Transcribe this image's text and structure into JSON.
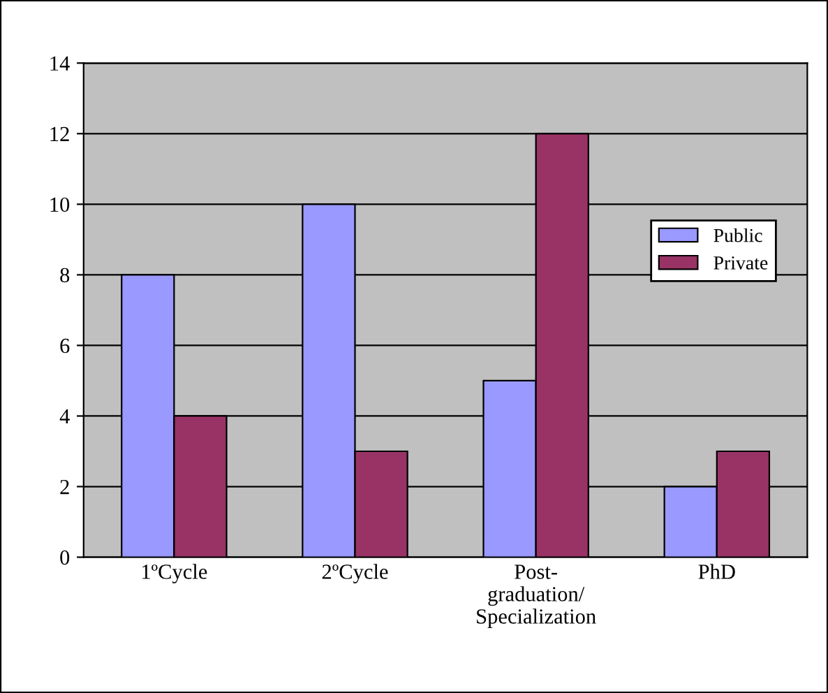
{
  "chart_data": {
    "type": "bar",
    "categories": [
      "1ºCycle",
      "2ºCycle",
      "Post-\ngraduation/\nSpecialization",
      "PhD"
    ],
    "series": [
      {
        "name": "Public",
        "color": "#9999ff",
        "values": [
          8,
          10,
          5,
          2
        ]
      },
      {
        "name": "Private",
        "color": "#993366",
        "values": [
          4,
          3,
          12,
          3
        ]
      }
    ],
    "ylim": [
      0,
      14
    ],
    "yticks": [
      0,
      2,
      4,
      6,
      8,
      10,
      12,
      14
    ],
    "grid": "y",
    "legend": "right"
  }
}
